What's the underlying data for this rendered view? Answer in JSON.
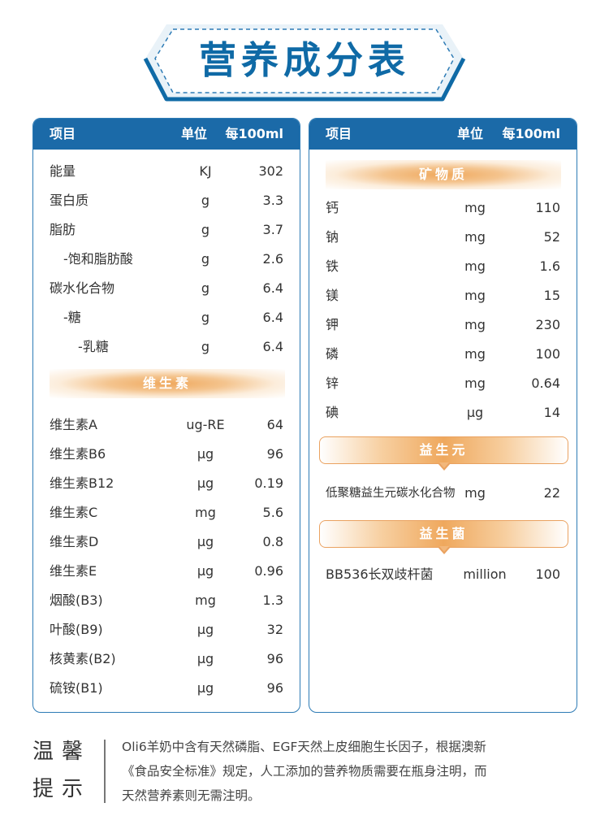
{
  "title": "营养成分表",
  "colors": {
    "blue": "#1b6aa8",
    "orange": "#efa85d",
    "text": "#333333"
  },
  "left_panel": {
    "header": {
      "item": "项目",
      "unit": "单位",
      "per": "每100ml"
    },
    "rows_top": [
      {
        "name": "能量",
        "unit": "KJ",
        "value": "302"
      },
      {
        "name": "蛋白质",
        "unit": "g",
        "value": "3.3"
      },
      {
        "name": "脂肪",
        "unit": "g",
        "value": "3.7"
      },
      {
        "name": "-饱和脂肪酸",
        "unit": "g",
        "value": "2.6"
      },
      {
        "name": "碳水化合物",
        "unit": "g",
        "value": "6.4"
      },
      {
        "name": "-糖",
        "unit": "g",
        "value": "6.4"
      },
      {
        "name": "-乳糖",
        "unit": "g",
        "value": "6.4"
      }
    ],
    "vitamin_section": "维生素",
    "rows_vitamin": [
      {
        "name": "维生素A",
        "unit": "ug-RE",
        "value": "64"
      },
      {
        "name": "维生素B6",
        "unit": "μg",
        "value": "96"
      },
      {
        "name": "维生素B12",
        "unit": "μg",
        "value": "0.19"
      },
      {
        "name": "维生素C",
        "unit": "mg",
        "value": "5.6"
      },
      {
        "name": "维生素D",
        "unit": "μg",
        "value": "0.8"
      },
      {
        "name": "维生素E",
        "unit": "μg",
        "value": "0.96"
      },
      {
        "name": "烟酸(B3)",
        "unit": "mg",
        "value": "1.3"
      },
      {
        "name": "叶酸(B9)",
        "unit": "μg",
        "value": "32"
      },
      {
        "name": "核黄素(B2)",
        "unit": "μg",
        "value": "96"
      },
      {
        "name": "硫铵(B1)",
        "unit": "μg",
        "value": "96"
      }
    ]
  },
  "right_panel": {
    "header": {
      "item": "项目",
      "unit": "单位",
      "per": "每100ml"
    },
    "mineral_section": "矿物质",
    "rows_mineral": [
      {
        "name": "钙",
        "unit": "mg",
        "value": "110"
      },
      {
        "name": "钠",
        "unit": "mg",
        "value": "52"
      },
      {
        "name": "铁",
        "unit": "mg",
        "value": "1.6"
      },
      {
        "name": "镁",
        "unit": "mg",
        "value": "15"
      },
      {
        "name": "钾",
        "unit": "mg",
        "value": "230"
      },
      {
        "name": "磷",
        "unit": "mg",
        "value": "100"
      },
      {
        "name": "锌",
        "unit": "mg",
        "value": "0.64"
      },
      {
        "name": "碘",
        "unit": "μg",
        "value": "14"
      }
    ],
    "prebiotic_section": "益生元",
    "prebiotic_row": {
      "name": "低聚糖益生元碳水化合物",
      "unit": "mg",
      "value": "22"
    },
    "probiotic_section": "益生菌",
    "probiotic_row": {
      "name": "BB536长双歧杆菌",
      "unit": "million",
      "value": "100"
    }
  },
  "tip": {
    "label_line1": "温馨",
    "label_line2": "提示",
    "line1": "Oli6羊奶中含有天然磷脂、EGF天然上皮细胞生长因子，根据澳新",
    "line2": "《食品安全标准》规定，人工添加的营养物质需要在瓶身注明，而",
    "line3": "天然营养素则无需注明。"
  }
}
